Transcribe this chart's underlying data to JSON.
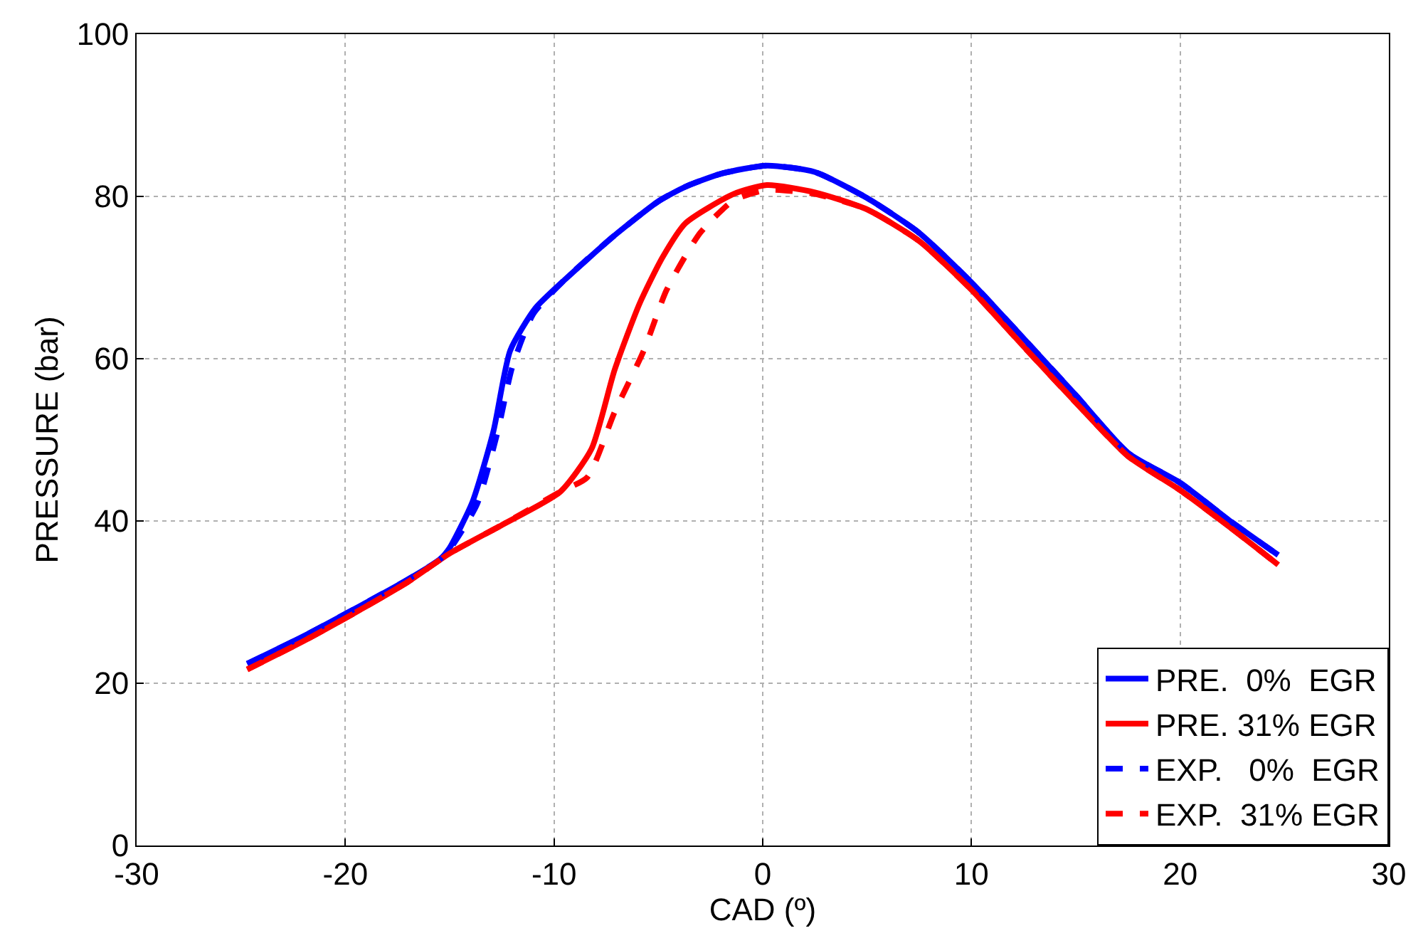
{
  "chart_data": {
    "type": "line",
    "xlabel": "CAD (º)",
    "ylabel": "PRESSURE (bar)",
    "xlim": [
      -30,
      30
    ],
    "xticks": [
      -30,
      -20,
      -10,
      0,
      10,
      20,
      30
    ],
    "ylim": [
      0,
      100
    ],
    "yticks": [
      0,
      20,
      40,
      60,
      80,
      100
    ],
    "grid": true,
    "legend": "bottom right",
    "marker": "none",
    "series": [
      {
        "name": "PRE.  0%  EGR",
        "color": "#0000ff",
        "line_style": "solid",
        "x": [
          -24.7,
          -22,
          -19.6,
          -17,
          -15.5,
          -15,
          -13.9,
          -12.9,
          -12.1,
          -10.9,
          -9.5,
          -7.1,
          -5,
          -3.7,
          -2,
          0.2,
          2.5,
          5,
          7.5,
          10,
          12.5,
          15,
          17.5,
          20,
          22.5,
          24.7
        ],
        "values": [
          22.4,
          25.8,
          29.1,
          32.8,
          35.2,
          36.7,
          42.4,
          51.1,
          61,
          66.2,
          69.7,
          75.2,
          79.4,
          81.2,
          82.8,
          83.8,
          83,
          79.8,
          75.5,
          69.4,
          62.5,
          55.5,
          48.4,
          44.7,
          39.8,
          35.8
        ]
      },
      {
        "name": "PRE. 31% EGR",
        "color": "#ff0000",
        "line_style": "solid",
        "x": [
          -24.7,
          -22,
          -19.6,
          -17,
          -15,
          -12.5,
          -9.7,
          -8.2,
          -7.1,
          -5.9,
          -4.8,
          -3.7,
          -1.4,
          0.2,
          2.5,
          5,
          7.5,
          10,
          12.5,
          15,
          17.5,
          20,
          22.5,
          24.7
        ],
        "values": [
          21.7,
          25.2,
          28.6,
          32.5,
          36,
          39.5,
          43.6,
          48.9,
          58.6,
          66.8,
          72.5,
          76.7,
          80.3,
          81.4,
          80.5,
          78.4,
          74.5,
          68.5,
          61.5,
          54.6,
          48,
          43.8,
          39,
          34.6
        ]
      },
      {
        "name": "EXP.   0%  EGR",
        "color": "#0000ff",
        "line_style": "dashed",
        "x": [
          -24.7,
          -22,
          -19.6,
          -17,
          -15.5,
          -15,
          -13.7,
          -12.7,
          -12,
          -11,
          -9.5,
          -7.1,
          -5,
          -3.7,
          -2,
          0.2,
          2.5,
          5,
          7.5,
          10,
          12.5,
          15,
          17.5,
          20,
          22.5,
          24.7
        ],
        "values": [
          22.4,
          25.8,
          29.1,
          32.8,
          35.2,
          36.5,
          42,
          51,
          59,
          65.5,
          69.7,
          75.2,
          79.4,
          81.2,
          82.8,
          83.8,
          83,
          79.8,
          75.5,
          69.4,
          62.5,
          55.5,
          48.4,
          44.7,
          39.8,
          35.8
        ]
      },
      {
        "name": "EXP.  31% EGR",
        "color": "#ff0000",
        "line_style": "dashed",
        "x": [
          -24.7,
          -22,
          -19.6,
          -17,
          -15,
          -12.5,
          -9.7,
          -8.4,
          -7.1,
          -5.7,
          -4.6,
          -3,
          -1.4,
          0.2,
          2.5,
          5,
          7.5,
          10,
          12.5,
          15,
          17.5,
          20,
          22.5,
          24.7
        ],
        "values": [
          21.7,
          25.2,
          28.6,
          32.5,
          36,
          39.5,
          43.6,
          45.4,
          53.4,
          61,
          68.5,
          75.5,
          79.5,
          80.8,
          80.3,
          78.4,
          74.5,
          68.5,
          61.5,
          54.6,
          48,
          43.8,
          39,
          34.6
        ]
      }
    ]
  }
}
